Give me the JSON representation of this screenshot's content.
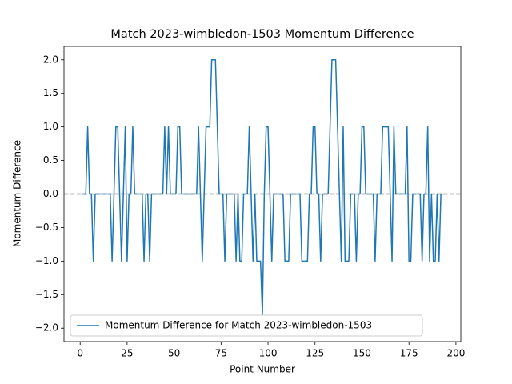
{
  "chart_data": {
    "type": "line",
    "title": "Match 2023-wimbledon-1503 Momentum Difference",
    "x_label": "Point Number",
    "y_label": "Momentum Difference",
    "x": [
      1,
      2,
      3,
      4,
      5,
      6,
      7,
      8,
      9,
      10,
      11,
      12,
      13,
      14,
      15,
      16,
      17,
      18,
      19,
      20,
      21,
      22,
      23,
      24,
      25,
      26,
      27,
      28,
      29,
      30,
      31,
      32,
      33,
      34,
      35,
      36,
      37,
      38,
      39,
      40,
      41,
      42,
      43,
      44,
      45,
      46,
      47,
      48,
      49,
      50,
      51,
      52,
      53,
      54,
      55,
      56,
      57,
      58,
      59,
      60,
      61,
      62,
      63,
      64,
      65,
      66,
      67,
      68,
      69,
      70,
      71,
      72,
      73,
      74,
      75,
      76,
      77,
      78,
      79,
      80,
      81,
      82,
      83,
      84,
      85,
      86,
      87,
      88,
      89,
      90,
      91,
      92,
      93,
      94,
      95,
      96,
      97,
      98,
      99,
      100,
      101,
      102,
      103,
      104,
      105,
      106,
      107,
      108,
      109,
      110,
      111,
      112,
      113,
      114,
      115,
      116,
      117,
      118,
      119,
      120,
      121,
      122,
      123,
      124,
      125,
      126,
      127,
      128,
      129,
      130,
      131,
      132,
      133,
      134,
      135,
      136,
      137,
      138,
      139,
      140,
      141,
      142,
      143,
      144,
      145,
      146,
      147,
      148,
      149,
      150,
      151,
      152,
      153,
      154,
      155,
      156,
      157,
      158,
      159,
      160,
      161,
      162,
      163,
      164,
      165,
      166,
      167,
      168,
      169,
      170,
      171,
      172,
      173,
      174,
      175,
      176,
      177,
      178,
      179,
      180,
      181,
      182,
      183,
      184,
      185,
      186,
      187,
      188,
      189,
      190,
      191,
      192,
      193
    ],
    "series": [
      {
        "name": "Momentum Difference for Match 2023-wimbledon-1503",
        "color": "#1f77b4",
        "values": [
          0,
          0,
          0,
          1,
          0,
          0,
          -1,
          0,
          0,
          0,
          0,
          0,
          0,
          0,
          0,
          0,
          -1,
          0,
          1,
          1,
          0,
          -1,
          0,
          1,
          -1,
          0,
          0,
          1,
          0,
          0,
          0,
          0,
          0,
          -1,
          0,
          0,
          -1,
          0,
          0,
          0,
          0,
          0,
          0,
          0,
          1,
          0,
          1,
          0,
          0,
          0,
          0,
          1,
          1,
          0,
          0,
          0,
          0,
          0,
          0,
          0,
          0,
          0,
          1,
          0,
          -1,
          0,
          1,
          1,
          1,
          2,
          2,
          2,
          1,
          0,
          0,
          0,
          -1,
          0,
          0,
          0,
          0,
          0,
          -1,
          0,
          -1,
          -1,
          0,
          0,
          0,
          1,
          0,
          -1,
          0,
          -1,
          -1,
          -1,
          -1.8,
          0,
          1,
          1,
          0,
          -1,
          0,
          0,
          0,
          0,
          0,
          0,
          -1,
          -1,
          -1,
          0,
          0,
          0,
          0,
          0,
          0,
          -1,
          -1,
          -1,
          -1,
          0,
          0,
          1,
          1,
          0,
          0,
          -1,
          0,
          0,
          0,
          0,
          1,
          2,
          2,
          2,
          1,
          0,
          -1,
          1,
          -1,
          -1,
          -1,
          0,
          0,
          0,
          -1,
          0,
          0,
          1,
          1,
          0,
          0,
          0,
          0,
          0,
          -1,
          0,
          0,
          0,
          1,
          1,
          1,
          1,
          0,
          -1,
          1,
          0,
          0,
          0,
          0,
          0,
          0,
          1,
          -1,
          -1,
          0,
          0,
          0,
          0,
          0,
          -1,
          0,
          0,
          1,
          -1,
          0,
          -1,
          -1,
          0,
          -1,
          0,
          0
        ]
      }
    ],
    "hline": {
      "value": 0,
      "color": "#808080"
    },
    "xlim": [
      -8.6,
      202.6
    ],
    "ylim": [
      -2.2,
      2.2
    ],
    "xticks": [
      0,
      25,
      50,
      75,
      100,
      125,
      150,
      175,
      200
    ],
    "yticks": [
      {
        "value": -2,
        "label": "−2.0"
      },
      {
        "value": -1.5,
        "label": "−1.5"
      },
      {
        "value": -1,
        "label": "−1.0"
      },
      {
        "value": -0.5,
        "label": "−0.5"
      },
      {
        "value": 0,
        "label": "0.0"
      },
      {
        "value": 0.5,
        "label": "0.5"
      },
      {
        "value": 1,
        "label": "1.0"
      },
      {
        "value": 1.5,
        "label": "1.5"
      },
      {
        "value": 2,
        "label": "2.0"
      }
    ],
    "legend": "lower left"
  }
}
